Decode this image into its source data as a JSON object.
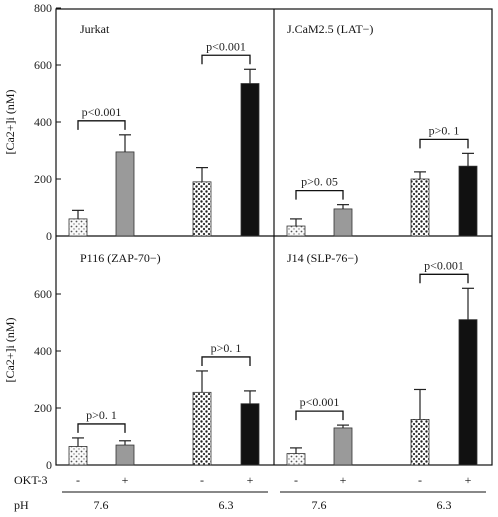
{
  "chart_data": [
    {
      "type": "bar",
      "title": "Jurkat",
      "ylabel": "[Ca2+]i (nM)",
      "ylim": [
        0,
        800
      ],
      "yticks": [
        0,
        200,
        400,
        600,
        800
      ],
      "categories": [
        "pH 7.6 -",
        "pH 7.6 +",
        "pH 6.3 -",
        "pH 6.3 +"
      ],
      "values": [
        60,
        295,
        190,
        535
      ],
      "errors": [
        30,
        60,
        50,
        50
      ],
      "comparisons": [
        {
          "label": "p<0.001",
          "pair": [
            0,
            1
          ]
        },
        {
          "label": "p<0.001",
          "pair": [
            2,
            3
          ]
        }
      ]
    },
    {
      "type": "bar",
      "title": "J.CaM2.5 (LAT−)",
      "ylim": [
        0,
        800
      ],
      "categories": [
        "pH 7.6 -",
        "pH 7.6 +",
        "pH 6.3 -",
        "pH 6.3 +"
      ],
      "values": [
        35,
        95,
        200,
        245
      ],
      "errors": [
        25,
        15,
        25,
        45
      ],
      "comparisons": [
        {
          "label": "p>0. 05",
          "pair": [
            0,
            1
          ]
        },
        {
          "label": "p>0. 1",
          "pair": [
            2,
            3
          ]
        }
      ]
    },
    {
      "type": "bar",
      "title": "P116 (ZAP-70−)",
      "ylabel": "[Ca2+]i (nM)",
      "ylim": [
        0,
        800
      ],
      "yticks": [
        0,
        200,
        400,
        600
      ],
      "categories": [
        "pH 7.6 -",
        "pH 7.6 +",
        "pH 6.3 -",
        "pH 6.3 +"
      ],
      "values": [
        65,
        70,
        255,
        215
      ],
      "errors": [
        30,
        15,
        75,
        45
      ],
      "comparisons": [
        {
          "label": "p>0. 1",
          "pair": [
            0,
            1
          ]
        },
        {
          "label": "p>0. 1",
          "pair": [
            2,
            3
          ]
        }
      ]
    },
    {
      "type": "bar",
      "title": "J14 (SLP-76−)",
      "ylim": [
        0,
        800
      ],
      "categories": [
        "pH 7.6 -",
        "pH 7.6 +",
        "pH 6.3 -",
        "pH 6.3 +"
      ],
      "values": [
        40,
        130,
        160,
        510
      ],
      "errors": [
        20,
        10,
        105,
        110
      ],
      "comparisons": [
        {
          "label": "p<0.001",
          "pair": [
            0,
            1
          ]
        },
        {
          "label": "p<0.001",
          "pair": [
            2,
            3
          ]
        }
      ]
    }
  ],
  "bottom": {
    "okt3_label": "OKT-3",
    "ph_label": "pH",
    "okt3_values": [
      "-",
      "+",
      "-",
      "+",
      "-",
      "+",
      "-",
      "+"
    ],
    "ph_values": [
      "7.6",
      "6.3",
      "7.6",
      "6.3"
    ]
  },
  "styles": {
    "colors": [
      "#ffffff",
      "#9a9a9a",
      "#ffffff",
      "#111111"
    ],
    "patterns": [
      "dots-light",
      "solid",
      "dots-dense",
      "solid"
    ]
  }
}
